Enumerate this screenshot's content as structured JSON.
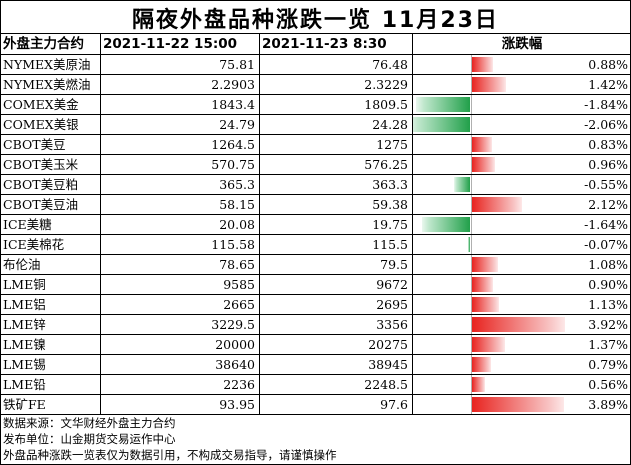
{
  "title": "隔夜外盘品种涨跌一览 11月23日",
  "headers": {
    "name": "外盘主力合约",
    "prev": "2021-11-22 15:00",
    "curr": "2021-11-23  8:30",
    "change": "涨跌幅"
  },
  "rows": [
    {
      "name": "NYMEX美原油",
      "prev": "75.81",
      "curr": "76.48",
      "pct": "0.88%",
      "value": 0.88
    },
    {
      "name": "NYMEX美燃油",
      "prev": "2.2903",
      "curr": "2.3229",
      "pct": "1.42%",
      "value": 1.42
    },
    {
      "name": "COMEX美金",
      "prev": "1843.4",
      "curr": "1809.5",
      "pct": "-1.84%",
      "value": -1.84
    },
    {
      "name": "COMEX美银",
      "prev": "24.79",
      "curr": "24.28",
      "pct": "-2.06%",
      "value": -2.06
    },
    {
      "name": "CBOT美豆",
      "prev": "1264.5",
      "curr": "1275",
      "pct": "0.83%",
      "value": 0.83
    },
    {
      "name": "CBOT美玉米",
      "prev": "570.75",
      "curr": "576.25",
      "pct": "0.96%",
      "value": 0.96
    },
    {
      "name": "CBOT美豆粕",
      "prev": "365.3",
      "curr": "363.3",
      "pct": "-0.55%",
      "value": -0.55
    },
    {
      "name": "CBOT美豆油",
      "prev": "58.15",
      "curr": "59.38",
      "pct": "2.12%",
      "value": 2.12
    },
    {
      "name": "ICE美糖",
      "prev": "20.08",
      "curr": "19.75",
      "pct": "-1.64%",
      "value": -1.64
    },
    {
      "name": "ICE美棉花",
      "prev": "115.58",
      "curr": "115.5",
      "pct": "-0.07%",
      "value": -0.07
    },
    {
      "name": "布伦油",
      "prev": "78.65",
      "curr": "79.5",
      "pct": "1.08%",
      "value": 1.08
    },
    {
      "name": "LME铜",
      "prev": "9585",
      "curr": "9672",
      "pct": "0.90%",
      "value": 0.9
    },
    {
      "name": "LME铝",
      "prev": "2665",
      "curr": "2695",
      "pct": "1.13%",
      "value": 1.13
    },
    {
      "name": "LME锌",
      "prev": "3229.5",
      "curr": "3356",
      "pct": "3.92%",
      "value": 3.92
    },
    {
      "name": "LME镍",
      "prev": "20000",
      "curr": "20275",
      "pct": "1.37%",
      "value": 1.37
    },
    {
      "name": "LME锡",
      "prev": "38640",
      "curr": "38945",
      "pct": "0.79%",
      "value": 0.79
    },
    {
      "name": "LME铅",
      "prev": "2236",
      "curr": "2248.5",
      "pct": "0.56%",
      "value": 0.56
    },
    {
      "name": "铁矿FE",
      "prev": "93.95",
      "curr": "97.6",
      "pct": "3.89%",
      "value": 3.89
    }
  ],
  "colors": {
    "up": "#e8231f",
    "down": "#21a04a"
  },
  "notes": [
    "数据来源：文华财经外盘主力合约",
    "发布单位：山金期货交易运作中心",
    "外盘品种涨跌一览表仅为数据引用，不构成交易指导，请谨慎操作"
  ]
}
